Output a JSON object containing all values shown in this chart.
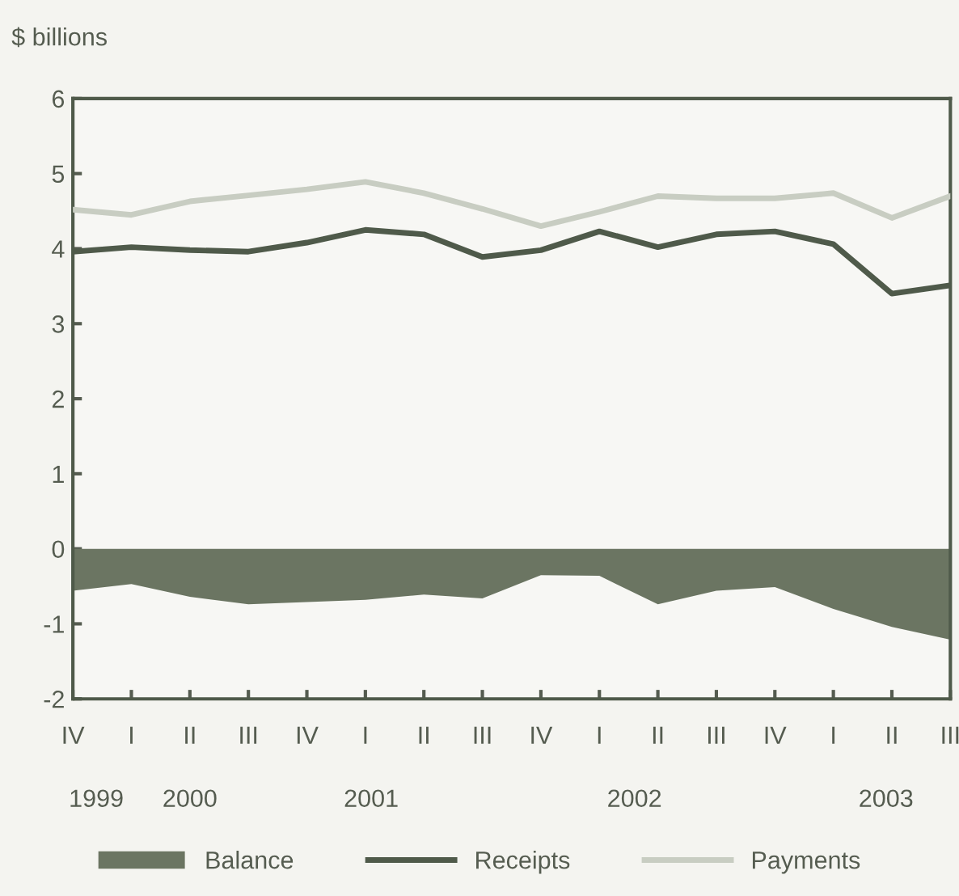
{
  "chart_data": {
    "type": "line",
    "ylabel": "$ billions",
    "categories": [
      "IV",
      "I",
      "II",
      "III",
      "IV",
      "I",
      "II",
      "III",
      "IV",
      "I",
      "II",
      "III",
      "IV",
      "I",
      "II",
      "III"
    ],
    "series": [
      {
        "name": "Balance",
        "type": "area",
        "color": "#6b7562",
        "values": [
          -0.56,
          -0.47,
          -0.64,
          -0.74,
          -0.71,
          -0.68,
          -0.61,
          -0.66,
          -0.35,
          -0.36,
          -0.74,
          -0.56,
          -0.51,
          -0.8,
          -1.04,
          -1.21
        ]
      },
      {
        "name": "Receipts",
        "color": "#4f5a4a",
        "values": [
          3.96,
          4.02,
          3.98,
          3.96,
          4.08,
          4.25,
          4.19,
          3.89,
          3.98,
          4.23,
          4.02,
          4.19,
          4.23,
          4.06,
          3.4,
          3.51
        ]
      },
      {
        "name": "Payments",
        "color": "#c8cdc2",
        "values": [
          4.52,
          4.45,
          4.63,
          4.71,
          4.79,
          4.89,
          4.74,
          4.53,
          4.3,
          4.49,
          4.7,
          4.67,
          4.67,
          4.74,
          4.41,
          4.7
        ]
      }
    ],
    "annotations": [
      "1999",
      "2000",
      "2001",
      "2002",
      "2003"
    ],
    "ylim": [
      -2,
      6
    ],
    "yticks": [
      -2,
      -1,
      0,
      1,
      2,
      3,
      4,
      5,
      6
    ],
    "grid": false,
    "legend": "bottom",
    "line_style": "solid",
    "marker": "none"
  }
}
